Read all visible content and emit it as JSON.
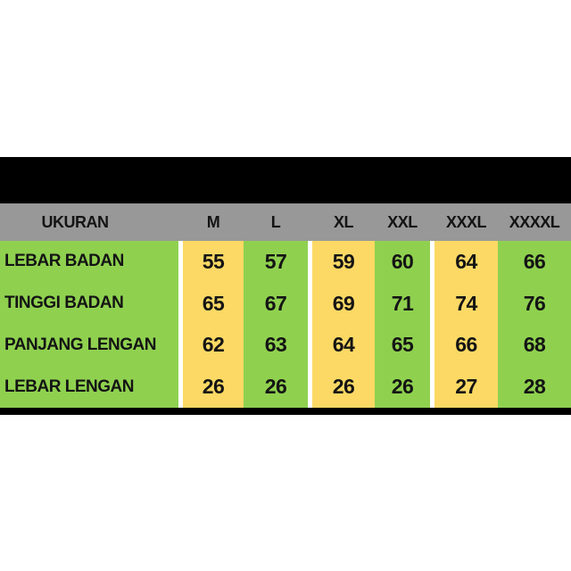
{
  "colors": {
    "background": "#FFFFFF",
    "black": "#000000",
    "gray": "#989898",
    "green": "#8FD14F",
    "yellow": "#FCD965",
    "text": "#141414"
  },
  "table": {
    "header": {
      "size_label": "UKURAN",
      "sizes": [
        "M",
        "L",
        "XL",
        "XXL",
        "XXXL",
        "XXXXL"
      ]
    },
    "rows": [
      {
        "label": "LEBAR BADAN",
        "values": [
          "55",
          "57",
          "59",
          "60",
          "64",
          "66"
        ]
      },
      {
        "label": "TINGGI BADAN",
        "values": [
          "65",
          "67",
          "69",
          "71",
          "74",
          "76"
        ]
      },
      {
        "label": "PANJANG LENGAN",
        "values": [
          "62",
          "63",
          "64",
          "65",
          "66",
          "68"
        ]
      },
      {
        "label": "LEBAR LENGAN",
        "values": [
          "26",
          "26",
          "26",
          "26",
          "27",
          "28"
        ]
      }
    ]
  },
  "chart_data": {
    "type": "table",
    "columns": [
      "UKURAN",
      "M",
      "L",
      "XL",
      "XXL",
      "XXXL",
      "XXXXL"
    ],
    "rows": [
      [
        "LEBAR BADAN",
        55,
        57,
        59,
        60,
        64,
        66
      ],
      [
        "TINGGI BADAN",
        65,
        67,
        69,
        71,
        74,
        76
      ],
      [
        "PANJANG LENGAN",
        62,
        63,
        64,
        65,
        66,
        68
      ],
      [
        "LEBAR LENGAN",
        26,
        26,
        26,
        26,
        27,
        28
      ]
    ],
    "layout_hints": {
      "highlight_columns_yellow": [
        "M",
        "XL",
        "XXXL"
      ],
      "base_column_color_green": [
        "UKURAN",
        "L",
        "XXL",
        "XXXXL"
      ],
      "header_background": "gray",
      "top_bar": "black",
      "bottom_bar": "black"
    }
  }
}
